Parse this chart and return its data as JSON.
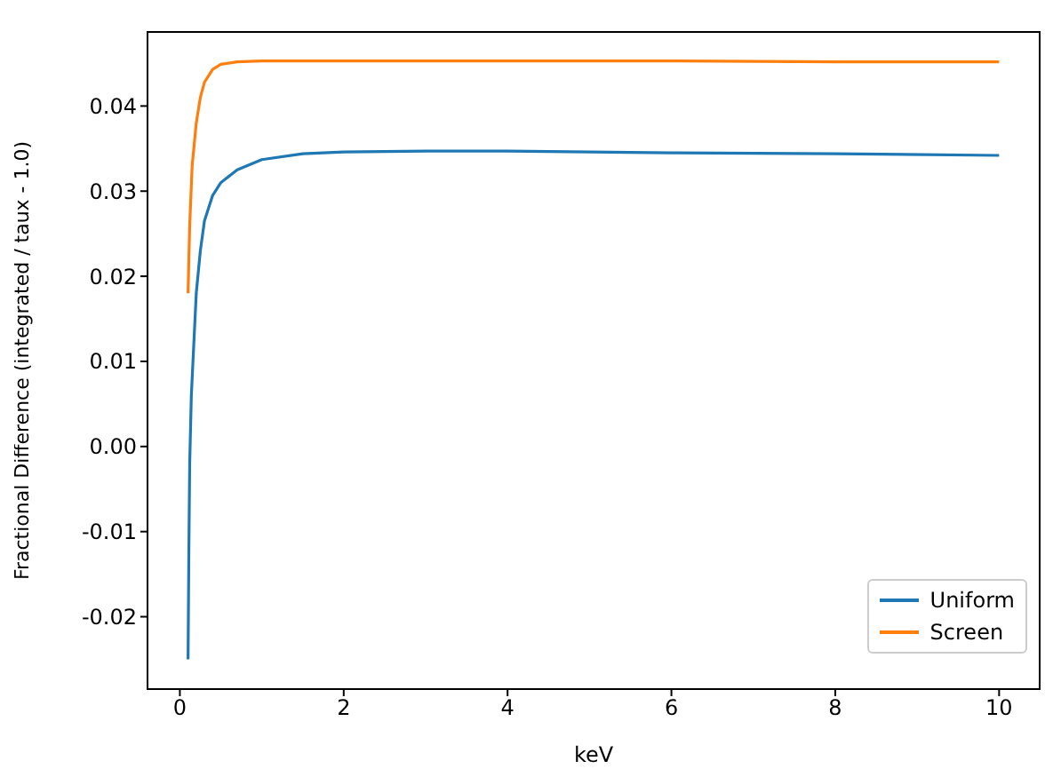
{
  "chart_data": {
    "type": "line",
    "xlabel": "keV",
    "ylabel": "Fractional Difference (integrated / taux - 1.0)",
    "xlim": [
      -0.395,
      10.495
    ],
    "xticks": [
      0,
      2,
      4,
      6,
      8,
      10
    ],
    "ylim": [
      -0.0285,
      0.0487
    ],
    "yticks": [
      {
        "value": -0.02,
        "label": "-0.02"
      },
      {
        "value": -0.01,
        "label": "-0.01"
      },
      {
        "value": 0,
        "label": "0.00"
      },
      {
        "value": 0.01,
        "label": "0.01"
      },
      {
        "value": 0.02,
        "label": "0.02"
      },
      {
        "value": 0.03,
        "label": "0.03"
      },
      {
        "value": 0.04,
        "label": "0.04"
      }
    ],
    "grid": false,
    "legend": "bottom right",
    "marker": "none",
    "line_style": "solid",
    "series": [
      {
        "name": "Uniform",
        "color": "#1f77b4",
        "x": [
          0.1,
          0.11,
          0.12,
          0.14,
          0.17,
          0.2,
          0.25,
          0.3,
          0.4,
          0.5,
          0.7,
          1,
          1.5,
          2,
          3,
          4,
          6,
          8,
          10
        ],
        "values": [
          -0.025,
          -0.012,
          -0.002,
          0.006,
          0.012,
          0.018,
          0.023,
          0.0265,
          0.0295,
          0.031,
          0.0325,
          0.0337,
          0.0344,
          0.0346,
          0.0347,
          0.0347,
          0.0345,
          0.0344,
          0.0342
        ]
      },
      {
        "name": "Screen",
        "color": "#ff7f0e",
        "x": [
          0.1,
          0.12,
          0.15,
          0.2,
          0.25,
          0.3,
          0.4,
          0.5,
          0.7,
          1,
          2,
          4,
          6,
          8,
          10
        ],
        "values": [
          0.018,
          0.026,
          0.033,
          0.038,
          0.041,
          0.0428,
          0.0443,
          0.0449,
          0.0452,
          0.0453,
          0.0453,
          0.0453,
          0.0453,
          0.0452,
          0.0452
        ]
      }
    ]
  }
}
